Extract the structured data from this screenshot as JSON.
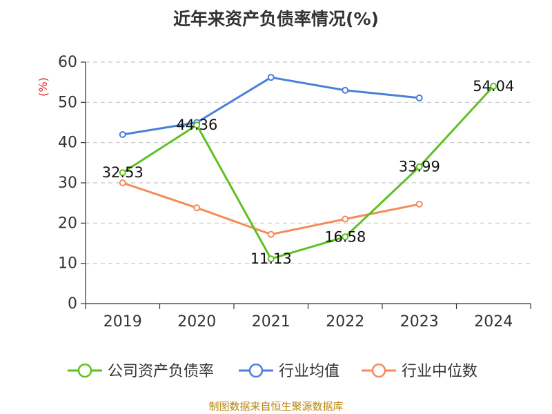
{
  "chart_data": {
    "type": "line",
    "title": "近年来资产负债率情况(%)",
    "ylabel": "(%)",
    "xlabel": "",
    "categories": [
      "2019",
      "2020",
      "2021",
      "2022",
      "2023",
      "2024"
    ],
    "ylim": [
      0,
      60
    ],
    "yticks": [
      0,
      10,
      20,
      30,
      40,
      50,
      60
    ],
    "grid": true,
    "legend_position": "bottom",
    "series": [
      {
        "name": "公司资产负债率",
        "color": "#5cc11f",
        "values": [
          32.53,
          44.36,
          11.13,
          16.58,
          33.99,
          54.04
        ],
        "labels": [
          "32.53",
          "44.36",
          "11.13",
          "16.58",
          "33.99",
          "54.04"
        ]
      },
      {
        "name": "行业均值",
        "color": "#4a7fd9",
        "values": [
          42.0,
          45.0,
          56.2,
          53.0,
          51.1,
          null
        ]
      },
      {
        "name": "行业中位数",
        "color": "#f48b57",
        "values": [
          30.0,
          23.8,
          17.2,
          21.0,
          24.7,
          null
        ]
      }
    ]
  },
  "source": "制图数据来自恒生聚源数据库"
}
